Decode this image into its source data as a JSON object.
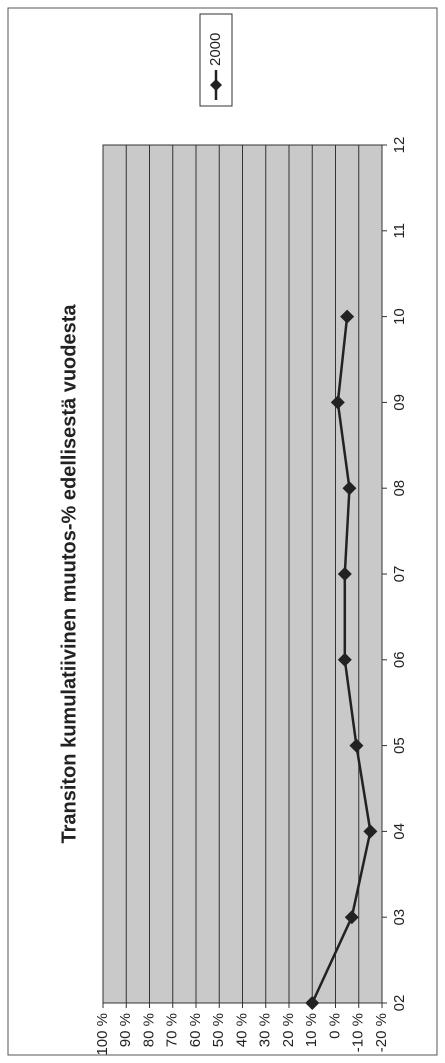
{
  "chart_data": {
    "type": "line",
    "title": "Transiton kumulatiivinen muutos-% edellisestä vuodesta",
    "categories": [
      "02",
      "03",
      "04",
      "05",
      "06",
      "07",
      "08",
      "09",
      "10",
      "11",
      "12"
    ],
    "series": [
      {
        "name": "2000",
        "color": "#222222",
        "values": [
          10,
          -7,
          -15,
          -9,
          -4,
          -4,
          -6,
          -1,
          -5,
          null,
          null
        ]
      }
    ],
    "ylim": [
      -20,
      100
    ],
    "yticks": [
      {
        "value": 100,
        "label": "100 %"
      },
      {
        "value": 90,
        "label": "90 %"
      },
      {
        "value": 80,
        "label": "80 %"
      },
      {
        "value": 70,
        "label": "70 %"
      },
      {
        "value": 60,
        "label": "60 %"
      },
      {
        "value": 50,
        "label": "50 %"
      },
      {
        "value": 40,
        "label": "40 %"
      },
      {
        "value": 30,
        "label": "30 %"
      },
      {
        "value": 20,
        "label": "20 %"
      },
      {
        "value": 10,
        "label": "10 %"
      },
      {
        "value": 0,
        "label": "0 %"
      },
      {
        "value": -10,
        "label": "-10 %"
      },
      {
        "value": -20,
        "label": "-20 %"
      }
    ],
    "grid": true,
    "legend": "top-right"
  }
}
